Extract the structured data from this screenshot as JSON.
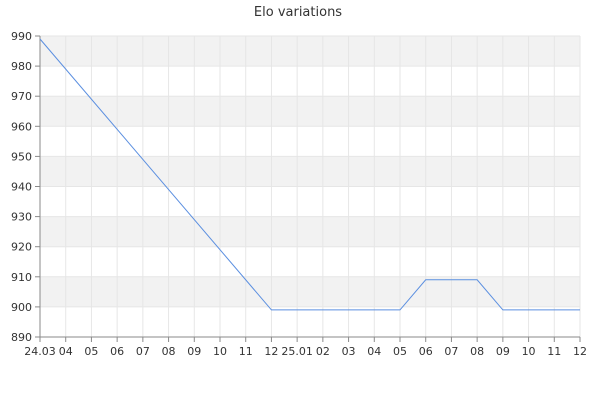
{
  "chart_data": {
    "type": "line",
    "title": "Elo variations",
    "xlabel": "",
    "ylabel": "",
    "x_tick_labels": [
      "24.03",
      "04",
      "05",
      "06",
      "07",
      "08",
      "09",
      "10",
      "11",
      "12",
      "25.01",
      "02",
      "03",
      "04",
      "05",
      "06",
      "07",
      "08",
      "09",
      "10",
      "11",
      "12"
    ],
    "ylim": [
      890,
      990
    ],
    "y_ticks": [
      890,
      900,
      910,
      920,
      930,
      940,
      950,
      960,
      970,
      980,
      990
    ],
    "grid": true,
    "legend": "none",
    "series": [
      {
        "x": [
          "24.03",
          "24.12",
          "25.01",
          "25.02",
          "25.03",
          "25.04",
          "25.05",
          "25.06",
          "25.07",
          "25.08",
          "25.09",
          "25.10",
          "25.11",
          "25.12"
        ],
        "y": [
          989,
          899,
          899,
          899,
          899,
          899,
          899,
          909,
          909,
          909,
          899,
          899,
          899,
          899
        ],
        "color": "#5b8fe0"
      }
    ]
  }
}
